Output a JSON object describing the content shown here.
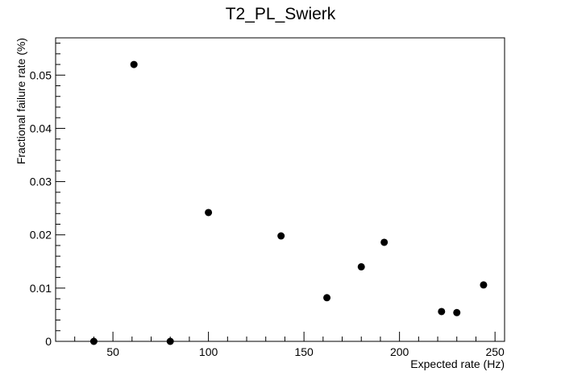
{
  "chart_data": {
    "type": "scatter",
    "title": "T2_PL_Swierk",
    "xlabel": "Expected rate (Hz)",
    "ylabel": "Fractional failure rate (%)",
    "xlim": [
      20,
      255
    ],
    "ylim": [
      0,
      0.057
    ],
    "x_ticks": [
      50,
      100,
      150,
      200,
      250
    ],
    "y_ticks": [
      0,
      0.01,
      0.02,
      0.03,
      0.04,
      0.05
    ],
    "x_tick_labels": [
      "50",
      "100",
      "150",
      "200",
      "250"
    ],
    "y_tick_labels": [
      "0",
      "0.01",
      "0.02",
      "0.03",
      "0.04",
      "0.05"
    ],
    "grid": false,
    "marker_color": "#000000",
    "points": [
      {
        "x": 40,
        "y": 0.0
      },
      {
        "x": 61,
        "y": 0.052
      },
      {
        "x": 80,
        "y": 0.0
      },
      {
        "x": 100,
        "y": 0.0242
      },
      {
        "x": 138,
        "y": 0.0198
      },
      {
        "x": 162,
        "y": 0.0082
      },
      {
        "x": 180,
        "y": 0.014
      },
      {
        "x": 192,
        "y": 0.0186
      },
      {
        "x": 222,
        "y": 0.0056
      },
      {
        "x": 230,
        "y": 0.0054
      },
      {
        "x": 244,
        "y": 0.0106
      }
    ]
  }
}
